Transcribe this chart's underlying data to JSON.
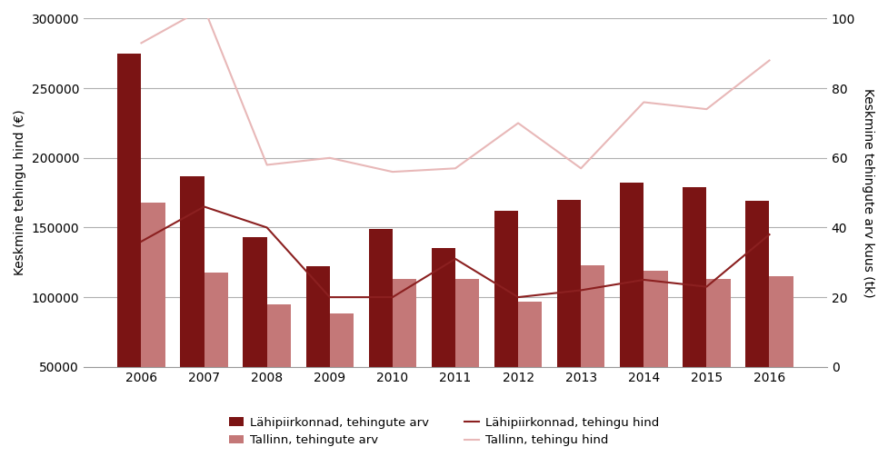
{
  "years": [
    2006,
    2007,
    2008,
    2009,
    2010,
    2011,
    2012,
    2013,
    2014,
    2015,
    2016
  ],
  "lahipiirkonnad_hind": [
    275000,
    187000,
    143000,
    122000,
    149000,
    135000,
    162000,
    170000,
    182000,
    179000,
    169000
  ],
  "tallinn_hind": [
    168000,
    118000,
    95000,
    88000,
    113000,
    113000,
    97000,
    123000,
    119000,
    113000,
    115000
  ],
  "lahipiirkonnad_arv": [
    36,
    46,
    40,
    20,
    20,
    31,
    20,
    22,
    25,
    23,
    38
  ],
  "tallinn_arv": [
    93,
    103,
    58,
    60,
    56,
    57,
    70,
    57,
    76,
    74,
    88
  ],
  "bar_color_lahipiirkonnad": "#7b1414",
  "bar_color_tallinn": "#c47878",
  "line_color_lahipiirkonnad": "#8b2020",
  "line_color_tallinn": "#e8b8b8",
  "ylabel_left": "Keskmine tehingu hind (€)",
  "ylabel_right": "Keskmine tehingute arv kuus (tk)",
  "ylim_left": [
    50000,
    300000
  ],
  "ylim_right": [
    0,
    100
  ],
  "yticks_left": [
    50000,
    100000,
    150000,
    200000,
    250000,
    300000
  ],
  "yticks_right": [
    0,
    20,
    40,
    60,
    80,
    100
  ],
  "legend_labels": [
    "Lähipiirkonnad, tehingute arv",
    "Tallinn, tehingute arv",
    "Lähipiirkonnad, tehingu hind",
    "Tallinn, tehingu hind"
  ],
  "background_color": "#ffffff",
  "grid_color": "#b0b0b0"
}
